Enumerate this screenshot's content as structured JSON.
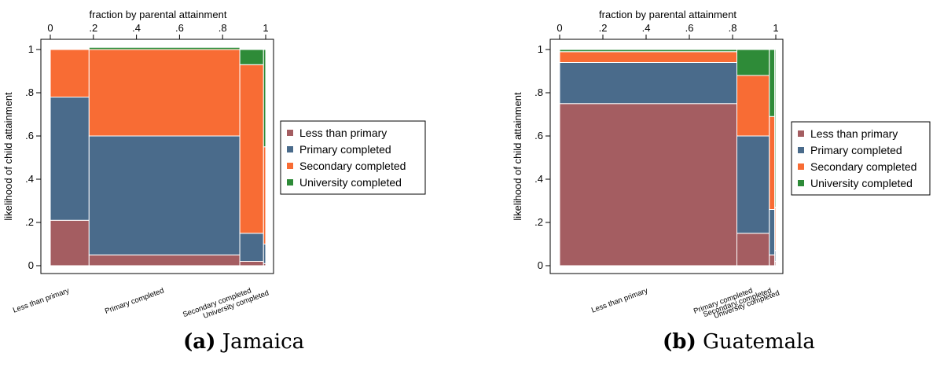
{
  "chart_data": [
    {
      "type": "mosaic",
      "caption_label": "(a)",
      "caption_text": "Jamaica",
      "top_axis_label": "fraction by parental attainment",
      "top_ticks": [
        "0",
        ".2",
        ".4",
        ".6",
        ".8",
        "1"
      ],
      "ylabel": "likelihood of child attainment",
      "y_ticks": [
        "0",
        ".2",
        ".4",
        ".6",
        ".8",
        "1"
      ],
      "legend_position": "right",
      "legend": [
        "Less than primary",
        "Primary completed",
        "Secondary completed",
        "University completed"
      ],
      "colors": [
        "#a45d61",
        "#4a6b8b",
        "#f86c34",
        "#2e8b38"
      ],
      "columns": [
        {
          "label": "Less than primary",
          "width": 0.18,
          "segments": [
            0.21,
            0.57,
            0.22,
            0.0
          ]
        },
        {
          "label": "Primary completed",
          "width": 0.7,
          "segments": [
            0.05,
            0.55,
            0.4,
            0.01
          ]
        },
        {
          "label": "Secondary completed",
          "width": 0.11,
          "segments": [
            0.02,
            0.13,
            0.78,
            0.07
          ]
        },
        {
          "label": "University completed",
          "width": 0.01,
          "segments": [
            0.01,
            0.09,
            0.45,
            0.45
          ]
        }
      ]
    },
    {
      "type": "mosaic",
      "caption_label": "(b)",
      "caption_text": "Guatemala",
      "top_axis_label": "fraction by parental attainment",
      "top_ticks": [
        "0",
        ".2",
        ".4",
        ".6",
        ".8",
        "1"
      ],
      "ylabel": "likelihood of child attainment",
      "y_ticks": [
        "0",
        ".2",
        ".4",
        ".6",
        ".8",
        "1"
      ],
      "legend_position": "right",
      "legend": [
        "Less than primary",
        "Primary completed",
        "Secondary completed",
        "University completed"
      ],
      "colors": [
        "#a45d61",
        "#4a6b8b",
        "#f86c34",
        "#2e8b38"
      ],
      "columns": [
        {
          "label": "Less than primary",
          "width": 0.82,
          "segments": [
            0.75,
            0.19,
            0.05,
            0.01
          ]
        },
        {
          "label": "Primary completed",
          "width": 0.15,
          "segments": [
            0.15,
            0.45,
            0.28,
            0.12
          ]
        },
        {
          "label": "Secondary completed",
          "width": 0.025,
          "segments": [
            0.05,
            0.21,
            0.43,
            0.31
          ]
        },
        {
          "label": "University completed",
          "width": 0.005,
          "segments": [
            0.02,
            0.05,
            0.2,
            0.73
          ]
        }
      ]
    }
  ]
}
